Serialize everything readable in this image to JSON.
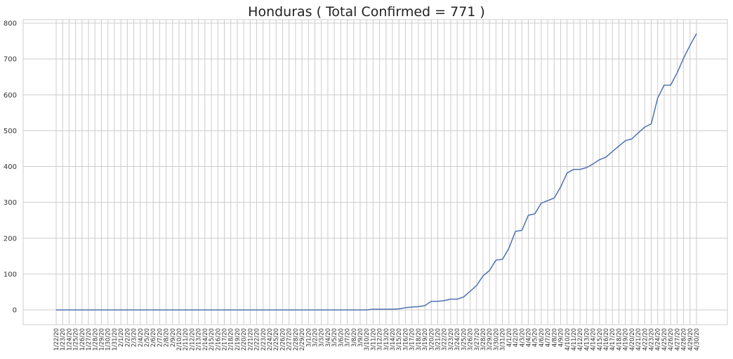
{
  "chart_data": {
    "type": "line",
    "title": "Honduras ( Total Confirmed = 771 )",
    "xlabel": "",
    "ylabel": "",
    "ylim": [
      -40,
      810
    ],
    "yticks": [
      0,
      100,
      200,
      300,
      400,
      500,
      600,
      700,
      800
    ],
    "grid": true,
    "line_color": "#4c72b0",
    "categories": [
      "1/22/20",
      "1/23/20",
      "1/24/20",
      "1/25/20",
      "1/26/20",
      "1/27/20",
      "1/28/20",
      "1/29/20",
      "1/30/20",
      "1/31/20",
      "2/1/20",
      "2/2/20",
      "2/3/20",
      "2/4/20",
      "2/5/20",
      "2/6/20",
      "2/7/20",
      "2/8/20",
      "2/9/20",
      "2/10/20",
      "2/11/20",
      "2/12/20",
      "2/13/20",
      "2/14/20",
      "2/15/20",
      "2/16/20",
      "2/17/20",
      "2/18/20",
      "2/19/20",
      "2/20/20",
      "2/21/20",
      "2/22/20",
      "2/23/20",
      "2/24/20",
      "2/25/20",
      "2/26/20",
      "2/27/20",
      "2/28/20",
      "2/29/20",
      "3/1/20",
      "3/2/20",
      "3/3/20",
      "3/4/20",
      "3/5/20",
      "3/6/20",
      "3/7/20",
      "3/8/20",
      "3/9/20",
      "3/10/20",
      "3/11/20",
      "3/12/20",
      "3/13/20",
      "3/14/20",
      "3/15/20",
      "3/16/20",
      "3/17/20",
      "3/18/20",
      "3/19/20",
      "3/20/20",
      "3/21/20",
      "3/22/20",
      "3/23/20",
      "3/24/20",
      "3/25/20",
      "3/26/20",
      "3/27/20",
      "3/28/20",
      "3/29/20",
      "3/30/20",
      "3/31/20",
      "4/1/20",
      "4/2/20",
      "4/3/20",
      "4/4/20",
      "4/5/20",
      "4/6/20",
      "4/7/20",
      "4/8/20",
      "4/9/20",
      "4/10/20",
      "4/11/20",
      "4/12/20",
      "4/13/20",
      "4/14/20",
      "4/15/20",
      "4/16/20",
      "4/17/20",
      "4/18/20",
      "4/19/20",
      "4/20/20",
      "4/21/20",
      "4/22/20",
      "4/23/20",
      "4/24/20",
      "4/25/20",
      "4/26/20",
      "4/27/20",
      "4/28/20",
      "4/29/20",
      "4/30/20"
    ],
    "series": [
      {
        "name": "Total Confirmed",
        "values": [
          0,
          0,
          0,
          0,
          0,
          0,
          0,
          0,
          0,
          0,
          0,
          0,
          0,
          0,
          0,
          0,
          0,
          0,
          0,
          0,
          0,
          0,
          0,
          0,
          0,
          0,
          0,
          0,
          0,
          0,
          0,
          0,
          0,
          0,
          0,
          0,
          0,
          0,
          0,
          0,
          0,
          0,
          0,
          0,
          0,
          0,
          0,
          0,
          0,
          2,
          2,
          2,
          2,
          3,
          6,
          8,
          9,
          12,
          24,
          24,
          26,
          30,
          30,
          36,
          52,
          68,
          95,
          110,
          139,
          141,
          172,
          219,
          222,
          264,
          268,
          298,
          305,
          312,
          343,
          382,
          392,
          392,
          397,
          407,
          419,
          426,
          442,
          457,
          472,
          477,
          494,
          510,
          519,
          591,
          627,
          627,
          661,
          702,
          738,
          771
        ]
      }
    ]
  }
}
